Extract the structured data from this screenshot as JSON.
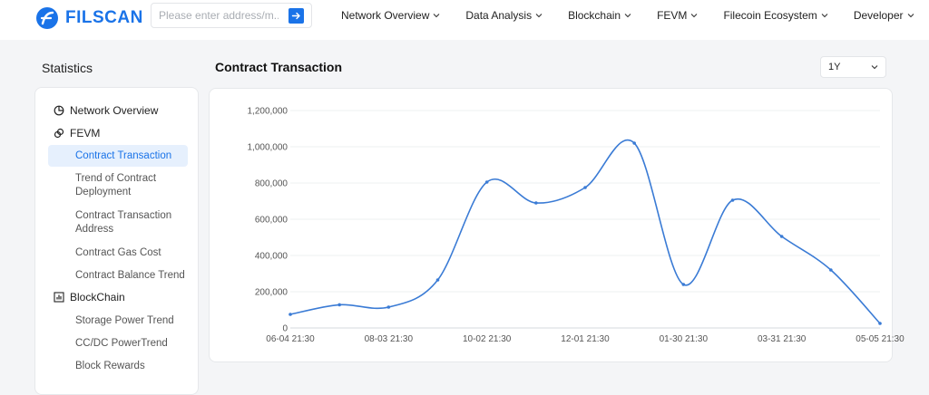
{
  "header": {
    "logo_text": "FILSCAN",
    "search_placeholder": "Please enter address/m...",
    "nav": [
      {
        "label": "Network Overview"
      },
      {
        "label": "Data Analysis"
      },
      {
        "label": "Blockchain"
      },
      {
        "label": "FEVM"
      },
      {
        "label": "Filecoin Ecosystem"
      },
      {
        "label": "Developer"
      }
    ]
  },
  "page": {
    "title": "Statistics",
    "section_title": "Contract Transaction",
    "range_selected": "1Y"
  },
  "sidebar": {
    "groups": [
      {
        "label": "Network Overview",
        "icon": "pie-chart-icon"
      },
      {
        "label": "FEVM",
        "icon": "link-icon"
      },
      {
        "label": "BlockChain",
        "icon": "bar-chart-icon"
      }
    ],
    "items": [
      {
        "label": "Contract Transaction",
        "active": true
      },
      {
        "label": "Trend of Contract Deployment"
      },
      {
        "label": "Contract Transaction Address"
      },
      {
        "label": "Contract Gas Cost"
      },
      {
        "label": "Contract Balance Trend"
      },
      {
        "label": "Storage Power Trend"
      },
      {
        "label": "CC/DC PowerTrend"
      },
      {
        "label": "Block Rewards"
      }
    ]
  },
  "colors": {
    "accent": "#1a73e8",
    "line": "#3a7bd5"
  },
  "chart_data": {
    "type": "line",
    "title": "",
    "xlabel": "",
    "ylabel": "",
    "ylim": [
      0,
      1200000
    ],
    "yticks": [
      "0",
      "200,000",
      "400,000",
      "600,000",
      "800,000",
      "1,000,000",
      "1,200,000"
    ],
    "ytick_values": [
      0,
      200000,
      400000,
      600000,
      800000,
      1000000,
      1200000
    ],
    "xtick_labels": [
      "06-04 21:30",
      "08-03 21:30",
      "10-02 21:30",
      "12-01 21:30",
      "01-30 21:30",
      "03-31 21:30",
      "05-05 21:30"
    ],
    "xtick_index": [
      0,
      2,
      4,
      6,
      8,
      10,
      12
    ],
    "grid": true,
    "series": [
      {
        "values": [
          75000,
          128000,
          115000,
          265000,
          805000,
          690000,
          775000,
          1020000,
          240000,
          705000,
          505000,
          320000,
          25000
        ]
      }
    ]
  }
}
